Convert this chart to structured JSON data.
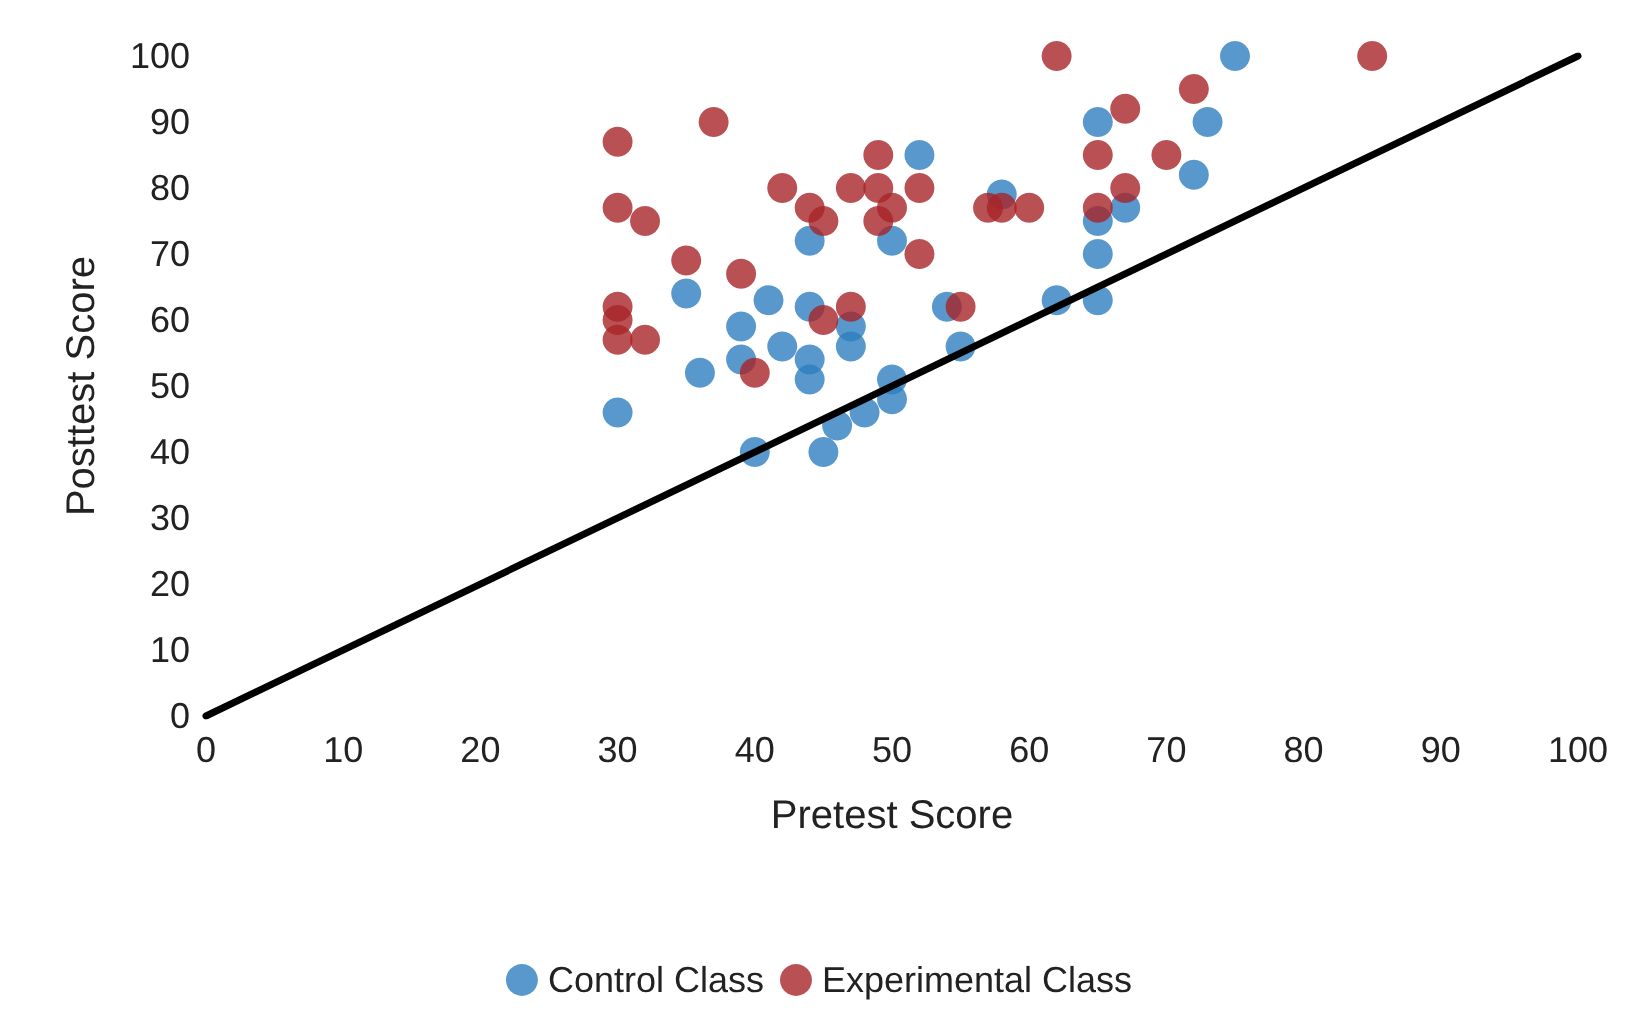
{
  "chart_data": {
    "type": "scatter",
    "xlabel": "Pretest Score",
    "ylabel": "Posttest Score",
    "xlim": [
      0,
      100
    ],
    "ylim": [
      0,
      100
    ],
    "xticks": [
      0,
      10,
      20,
      30,
      40,
      50,
      60,
      70,
      80,
      90,
      100
    ],
    "yticks": [
      0,
      10,
      20,
      30,
      40,
      50,
      60,
      70,
      80,
      90,
      100
    ],
    "grid": false,
    "legend": "bottom",
    "marker": "circle",
    "series": [
      {
        "name": "Control Class",
        "color": "#2e7ebf",
        "x": [
          30,
          35,
          36,
          39,
          39,
          40,
          41,
          42,
          44,
          44,
          44,
          44,
          45,
          46,
          47,
          47,
          48,
          50,
          50,
          50,
          52,
          54,
          55,
          58,
          62,
          65,
          65,
          65,
          65,
          67,
          72,
          73,
          75
        ],
        "values": [
          46,
          64,
          52,
          59,
          54,
          40,
          63,
          56,
          72,
          62,
          54,
          51,
          40,
          44,
          59,
          56,
          46,
          72,
          51,
          48,
          85,
          62,
          56,
          79,
          63,
          90,
          75,
          70,
          63,
          77,
          82,
          90,
          100
        ]
      },
      {
        "name": "Experimental Class",
        "color": "#a82428",
        "x": [
          30,
          30,
          30,
          30,
          30,
          32,
          32,
          35,
          37,
          39,
          40,
          42,
          44,
          45,
          45,
          47,
          47,
          49,
          49,
          49,
          50,
          52,
          52,
          55,
          57,
          58,
          60,
          62,
          65,
          65,
          67,
          67,
          70,
          72,
          85
        ],
        "values": [
          87,
          77,
          62,
          60,
          57,
          75,
          57,
          69,
          90,
          67,
          52,
          80,
          77,
          75,
          60,
          80,
          62,
          85,
          80,
          75,
          77,
          80,
          70,
          62,
          77,
          77,
          77,
          100,
          85,
          77,
          92,
          80,
          85,
          95,
          100
        ]
      },
      {
        "type": "line",
        "color": "#000000",
        "x": [
          0,
          100
        ],
        "values": [
          0,
          100
        ],
        "marker": "none",
        "line_style": "solid"
      }
    ]
  }
}
